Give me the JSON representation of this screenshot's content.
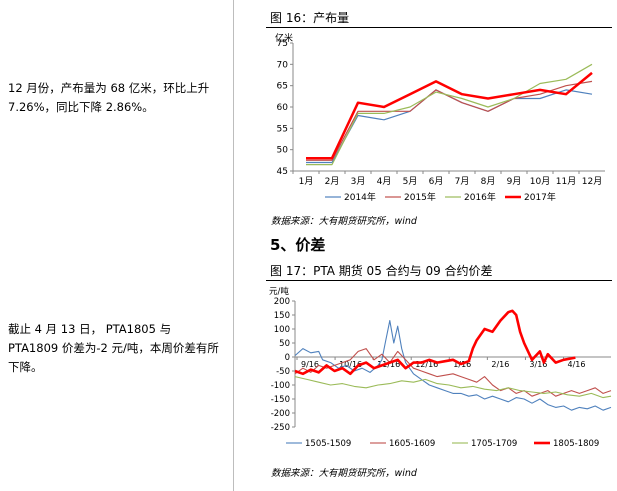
{
  "left_text": {
    "para1": "12 月份，产布量为 68 亿米，环比上升 7.26%，同比下降 2.86%。",
    "para2": "截止 4 月 13 日， PTA1805 与 PTA1809 价差为-2 元/吨，本周价差有所下降。"
  },
  "figure16": {
    "title": "图 16：产布量",
    "source": "数据来源：大有期货研究所，wind"
  },
  "section": {
    "title": "5、价差"
  },
  "figure17": {
    "title": "图 17：PTA 期货 05 合约与 09 合约价差",
    "source": "数据来源：大有期货研究所，wind"
  },
  "chart_data": [
    {
      "type": "line",
      "ylabel": "亿米",
      "ylim": [
        45,
        75
      ],
      "yticks": [
        45,
        50,
        55,
        60,
        65,
        70,
        75
      ],
      "categories": [
        "1月",
        "2月",
        "3月",
        "4月",
        "5月",
        "6月",
        "7月",
        "8月",
        "9月",
        "10月",
        "11月",
        "12月"
      ],
      "legend_position": "bottom",
      "grid": false,
      "series": [
        {
          "name": "2014年",
          "color": "#4f81bd",
          "width": 1.2,
          "values": [
            47,
            47,
            58,
            57,
            59,
            64,
            61,
            59,
            62,
            62,
            64,
            63
          ]
        },
        {
          "name": "2015年",
          "color": "#c0504d",
          "width": 1.2,
          "values": [
            47.5,
            47.5,
            59,
            59,
            59,
            64,
            61,
            59,
            62,
            63,
            65,
            66
          ]
        },
        {
          "name": "2016年",
          "color": "#9bbb59",
          "width": 1.2,
          "values": [
            46.5,
            46.5,
            58.5,
            58.5,
            60,
            63.5,
            62,
            60,
            62,
            65.5,
            66.5,
            70
          ]
        },
        {
          "name": "2017年",
          "color": "#ff0000",
          "width": 2.5,
          "values": [
            48,
            48,
            61,
            60,
            63,
            66,
            63,
            62,
            63,
            64,
            63,
            68
          ]
        }
      ]
    },
    {
      "type": "line",
      "ylabel": "元/吨",
      "ylim": [
        -250,
        200
      ],
      "yticks": [
        -250,
        -200,
        -150,
        -100,
        -50,
        0,
        50,
        100,
        150,
        200
      ],
      "xticks": [
        "9/16",
        "10/16",
        "11/16",
        "12/16",
        "1/16",
        "2/16",
        "3/16",
        "4/16"
      ],
      "legend_position": "bottom",
      "grid": false,
      "series": [
        {
          "name": "1505-1509",
          "color": "#4f81bd",
          "width": 1.1,
          "points": [
            [
              0,
              5
            ],
            [
              2,
              30
            ],
            [
              4,
              15
            ],
            [
              6,
              20
            ],
            [
              7,
              -10
            ],
            [
              9,
              -20
            ],
            [
              11,
              -40
            ],
            [
              13,
              -30
            ],
            [
              15,
              -50
            ],
            [
              17,
              -40
            ],
            [
              19,
              -55
            ],
            [
              21,
              -30
            ],
            [
              22,
              -10
            ],
            [
              23,
              60
            ],
            [
              24,
              130
            ],
            [
              25,
              50
            ],
            [
              26,
              110
            ],
            [
              27,
              30
            ],
            [
              28,
              -20
            ],
            [
              30,
              -60
            ],
            [
              32,
              -80
            ],
            [
              34,
              -100
            ],
            [
              36,
              -110
            ],
            [
              38,
              -120
            ],
            [
              40,
              -130
            ],
            [
              42,
              -130
            ],
            [
              44,
              -140
            ],
            [
              46,
              -135
            ],
            [
              48,
              -150
            ],
            [
              50,
              -140
            ],
            [
              52,
              -150
            ],
            [
              54,
              -160
            ],
            [
              56,
              -145
            ],
            [
              58,
              -150
            ],
            [
              60,
              -165
            ],
            [
              62,
              -150
            ],
            [
              64,
              -170
            ],
            [
              66,
              -180
            ],
            [
              68,
              -175
            ],
            [
              70,
              -190
            ],
            [
              72,
              -180
            ],
            [
              74,
              -185
            ],
            [
              76,
              -175
            ],
            [
              78,
              -190
            ],
            [
              80,
              -180
            ]
          ]
        },
        {
          "name": "1605-1609",
          "color": "#c0504d",
          "width": 1.1,
          "points": [
            [
              0,
              -60
            ],
            [
              2,
              -40
            ],
            [
              4,
              -55
            ],
            [
              6,
              -30
            ],
            [
              8,
              -40
            ],
            [
              10,
              -30
            ],
            [
              12,
              -20
            ],
            [
              14,
              -10
            ],
            [
              16,
              20
            ],
            [
              18,
              30
            ],
            [
              20,
              -10
            ],
            [
              22,
              10
            ],
            [
              24,
              -20
            ],
            [
              26,
              20
            ],
            [
              28,
              -10
            ],
            [
              30,
              -40
            ],
            [
              32,
              -50
            ],
            [
              34,
              -60
            ],
            [
              36,
              -70
            ],
            [
              38,
              -65
            ],
            [
              40,
              -60
            ],
            [
              42,
              -70
            ],
            [
              44,
              -80
            ],
            [
              46,
              -90
            ],
            [
              48,
              -70
            ],
            [
              50,
              -100
            ],
            [
              52,
              -120
            ],
            [
              54,
              -110
            ],
            [
              56,
              -130
            ],
            [
              58,
              -120
            ],
            [
              60,
              -140
            ],
            [
              62,
              -130
            ],
            [
              64,
              -120
            ],
            [
              66,
              -140
            ],
            [
              68,
              -130
            ],
            [
              70,
              -120
            ],
            [
              72,
              -130
            ],
            [
              74,
              -120
            ],
            [
              76,
              -110
            ],
            [
              78,
              -130
            ],
            [
              80,
              -120
            ]
          ]
        },
        {
          "name": "1705-1709",
          "color": "#9bbb59",
          "width": 1.1,
          "points": [
            [
              0,
              -70
            ],
            [
              3,
              -80
            ],
            [
              6,
              -90
            ],
            [
              9,
              -100
            ],
            [
              12,
              -95
            ],
            [
              15,
              -105
            ],
            [
              18,
              -110
            ],
            [
              21,
              -100
            ],
            [
              24,
              -95
            ],
            [
              27,
              -85
            ],
            [
              30,
              -90
            ],
            [
              33,
              -80
            ],
            [
              36,
              -95
            ],
            [
              39,
              -100
            ],
            [
              42,
              -110
            ],
            [
              45,
              -105
            ],
            [
              48,
              -115
            ],
            [
              51,
              -120
            ],
            [
              54,
              -110
            ],
            [
              57,
              -120
            ],
            [
              60,
              -125
            ],
            [
              63,
              -130
            ],
            [
              66,
              -125
            ],
            [
              69,
              -135
            ],
            [
              72,
              -140
            ],
            [
              75,
              -130
            ],
            [
              78,
              -145
            ],
            [
              80,
              -140
            ]
          ]
        },
        {
          "name": "1805-1809",
          "color": "#ff0000",
          "width": 2.6,
          "points": [
            [
              0,
              -50
            ],
            [
              2,
              -60
            ],
            [
              4,
              -45
            ],
            [
              6,
              -55
            ],
            [
              8,
              -30
            ],
            [
              10,
              -50
            ],
            [
              12,
              -40
            ],
            [
              14,
              -60
            ],
            [
              16,
              -30
            ],
            [
              18,
              -20
            ],
            [
              20,
              -40
            ],
            [
              22,
              -30
            ],
            [
              24,
              -20
            ],
            [
              26,
              -10
            ],
            [
              28,
              -40
            ],
            [
              29,
              -30
            ],
            [
              30,
              -20
            ],
            [
              32,
              -20
            ],
            [
              34,
              -10
            ],
            [
              36,
              -20
            ],
            [
              38,
              -15
            ],
            [
              40,
              -10
            ],
            [
              42,
              -25
            ],
            [
              44,
              -15
            ],
            [
              45,
              30
            ],
            [
              46,
              60
            ],
            [
              48,
              100
            ],
            [
              50,
              90
            ],
            [
              52,
              130
            ],
            [
              54,
              160
            ],
            [
              55,
              165
            ],
            [
              56,
              150
            ],
            [
              57,
              90
            ],
            [
              58,
              50
            ],
            [
              60,
              -10
            ],
            [
              62,
              20
            ],
            [
              63,
              -20
            ],
            [
              64,
              10
            ],
            [
              66,
              -20
            ],
            [
              68,
              -10
            ],
            [
              70,
              -5
            ],
            [
              71,
              -2
            ]
          ]
        }
      ]
    }
  ]
}
